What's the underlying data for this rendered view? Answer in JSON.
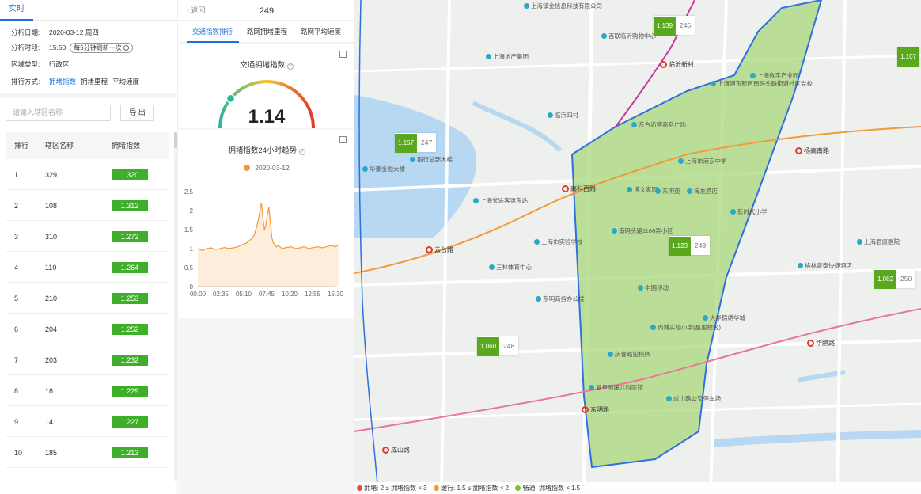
{
  "left": {
    "tab": "实时",
    "filters": {
      "date_label": "分析日期:",
      "date_value": "2020-03-12 周四",
      "time_label": "分析时段:",
      "time_value": "15:50",
      "refresh_pill": "每5分钟刷新一次",
      "region_label": "区域类型:",
      "region_value": "行政区",
      "sort_label": "排行方式:",
      "sort_options": [
        "拥堵指数",
        "拥堵里程",
        "平均速度"
      ]
    },
    "search_placeholder": "请输入辖区名称",
    "export_label": "导 出",
    "table": {
      "headers": [
        "排行",
        "辖区名称",
        "拥堵指数"
      ],
      "rows": [
        {
          "rank": "1",
          "name": "329",
          "index": "1.320"
        },
        {
          "rank": "2",
          "name": "108",
          "index": "1.312"
        },
        {
          "rank": "3",
          "name": "310",
          "index": "1.272"
        },
        {
          "rank": "4",
          "name": "110",
          "index": "1.264"
        },
        {
          "rank": "5",
          "name": "210",
          "index": "1.253"
        },
        {
          "rank": "6",
          "name": "204",
          "index": "1.252"
        },
        {
          "rank": "7",
          "name": "203",
          "index": "1.232"
        },
        {
          "rank": "8",
          "name": "18",
          "index": "1.229"
        },
        {
          "rank": "9",
          "name": "14",
          "index": "1.227"
        },
        {
          "rank": "10",
          "name": "185",
          "index": "1.213"
        }
      ]
    }
  },
  "mid": {
    "back": "返回",
    "title": "249",
    "tabs": [
      "交通指数排行",
      "路网拥堵里程",
      "路网平均速度"
    ],
    "gauge": {
      "title": "交通拥堵指数",
      "value": "1.14",
      "fraction": 0.57
    },
    "trend": {
      "title": "拥堵指数24小时趋势",
      "legend": "2020-03-12"
    }
  },
  "chart_data": {
    "type": "line",
    "title": "拥堵指数24小时趋势",
    "xlabel": "",
    "ylabel": "",
    "ylim": [
      0,
      2.5
    ],
    "yticks": [
      "0",
      "0.5",
      "1",
      "1.5",
      "2",
      "2.5"
    ],
    "xticks": [
      "00:00",
      "02:35",
      "05:10",
      "07:45",
      "10:20",
      "12:55",
      "15:30"
    ],
    "legend_position": "top",
    "series": [
      {
        "name": "2020-03-12",
        "color": "#f39a3a",
        "x_minutes": [
          0,
          30,
          60,
          90,
          120,
          150,
          180,
          210,
          240,
          270,
          300,
          330,
          360,
          380,
          400,
          420,
          430,
          440,
          450,
          460,
          470,
          480,
          490,
          500,
          510,
          520,
          530,
          540,
          555,
          570,
          600,
          630,
          660,
          690,
          720,
          750,
          780,
          810,
          840,
          870,
          900,
          930,
          950
        ],
        "y": [
          1.0,
          0.95,
          1.0,
          1.02,
          0.98,
          1.0,
          1.03,
          1.0,
          1.02,
          1.05,
          1.1,
          1.15,
          1.25,
          1.35,
          1.6,
          2.0,
          2.2,
          1.8,
          1.5,
          1.6,
          1.9,
          2.1,
          1.7,
          1.3,
          1.15,
          1.1,
          1.05,
          1.08,
          1.05,
          1.0,
          1.03,
          1.05,
          1.0,
          1.02,
          1.05,
          1.0,
          1.03,
          1.05,
          1.02,
          1.05,
          1.08,
          1.05,
          1.1
        ]
      }
    ]
  },
  "map": {
    "tags": [
      {
        "index": "1.139",
        "id": "245"
      },
      {
        "index": "1.107",
        "id": ""
      },
      {
        "index": "1.157",
        "id": "247"
      },
      {
        "index": "1.123",
        "id": "249"
      },
      {
        "index": "1.082",
        "id": "250"
      },
      {
        "index": "1.060",
        "id": "248"
      }
    ],
    "stations": [
      "临沂新村",
      "高科西路",
      "云台路",
      "东明路",
      "成山路",
      "杨高南路",
      "华鹏路"
    ],
    "pois": [
      "上海镇金信息科技有限公司",
      "百联临沂购物中心",
      "上海地产集团",
      "上海市浦东中学",
      "上海浦东新区南码头路街道社区党校",
      "博文家园",
      "东明苑",
      "海友酒店",
      "上海市实验学校",
      "三林体育中心",
      "东明商务办公楼",
      "中国移动",
      "尚博实验小学(昌里校区)",
      "庆春路馆棋牌",
      "复旦附属儿科医院",
      "成山路公交停车场",
      "银行总部大楼",
      "华泰金融大楼",
      "上海长途客运东站",
      "上海数字产业园",
      "格林豪泰快捷酒店",
      "大华锦绣华城",
      "上海君康医院",
      "新时代小学",
      "南码头路1186弄小区",
      "临沂四村",
      "东方尚博商务广场"
    ],
    "legend": {
      "heavy": "拥堵:  2 ≤ 拥堵指数 < 3",
      "medium": "缓行:  1.5 ≤ 拥堵指数 < 2",
      "light": "畅通:  拥堵指数 < 1.5"
    },
    "colors": {
      "heavy": "#e84a3a",
      "medium": "#f39a3a",
      "light": "#7cc12c",
      "zone": "#a8d87a",
      "border": "#2f6fe0"
    }
  }
}
